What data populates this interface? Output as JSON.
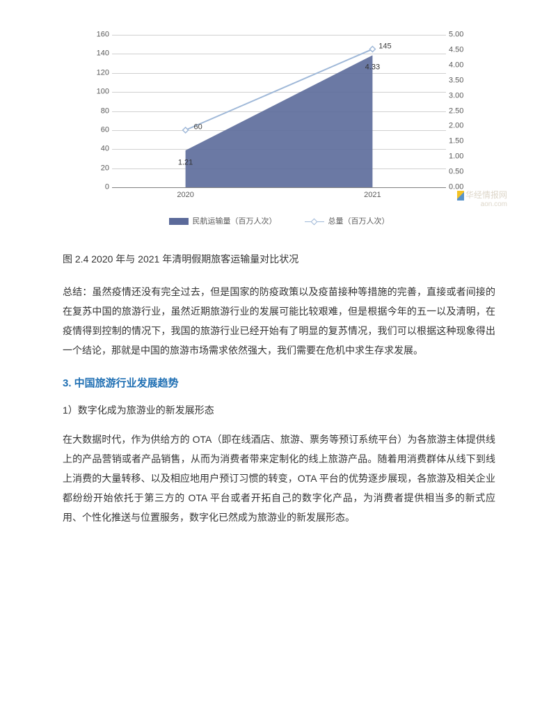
{
  "chart": {
    "type": "combo-area-line",
    "categories": [
      "2020",
      "2021"
    ],
    "series_area": {
      "name": "民航运输量（百万人次）",
      "values": [
        1.21,
        4.33
      ],
      "value_labels": [
        "1.21",
        "4.33"
      ],
      "fill_color": "#5b6a9a",
      "fill_opacity": 0.9
    },
    "series_line": {
      "name": "总量（百万人次）",
      "values": [
        60,
        145
      ],
      "value_labels": [
        "60",
        "145"
      ],
      "line_color": "#9fb8d8",
      "line_width": 2,
      "marker": "diamond",
      "marker_size": 8,
      "marker_fill": "#ffffff",
      "marker_stroke": "#9fb8d8"
    },
    "y_left": {
      "min": 0,
      "max": 160,
      "step": 20,
      "ticks": [
        "0",
        "20",
        "40",
        "60",
        "80",
        "100",
        "120",
        "140",
        "160"
      ]
    },
    "y_right": {
      "min": 0,
      "max": 5.0,
      "step": 0.5,
      "ticks": [
        "0.00",
        "0.50",
        "1.00",
        "1.50",
        "2.00",
        "2.50",
        "3.00",
        "3.50",
        "4.00",
        "4.50",
        "5.00"
      ]
    },
    "grid_color": "#d0d0d0",
    "axis_color": "#808080",
    "tick_fontsize": 11,
    "tick_color": "#595959",
    "background_color": "#ffffff",
    "x_positions_pct": [
      22,
      78
    ]
  },
  "watermark": {
    "brand": "华经情报网",
    "url": "aon.com"
  },
  "caption": "图 2.4 2020 年与 2021 年清明假期旅客运输量对比状况",
  "summary_label": "总结：",
  "summary_text": "虽然疫情还没有完全过去，但是国家的防疫政策以及疫苗接种等措施的完善，直接或者间接的在复苏中国的旅游行业，虽然近期旅游行业的发展可能比较艰难，但是根据今年的五一以及清明，在疫情得到控制的情况下，我国的旅游行业已经开始有了明显的复苏情况，我们可以根据这种现象得出一个结论，那就是中国的旅游市场需求依然强大，我们需要在危机中求生存求发展。",
  "heading3": "3. 中国旅游行业发展趋势",
  "sub1": "1）数字化成为旅游业的新发展形态",
  "para1": "在大数据时代，作为供给方的 OTA（即在线酒店、旅游、票务等预订系统平台）为各旅游主体提供线上的产品营销或者产品销售，从而为消费者带来定制化的线上旅游产品。随着用消费群体从线下到线上消费的大量转移、以及相应地用户预订习惯的转变，OTA 平台的优势逐步展现，各旅游及相关企业都纷纷开始依托于第三方的 OTA 平台或者开拓自己的数字化产品，为消费者提供相当多的新式应用、个性化推送与位置服务，数字化已然成为旅游业的新发展形态。"
}
